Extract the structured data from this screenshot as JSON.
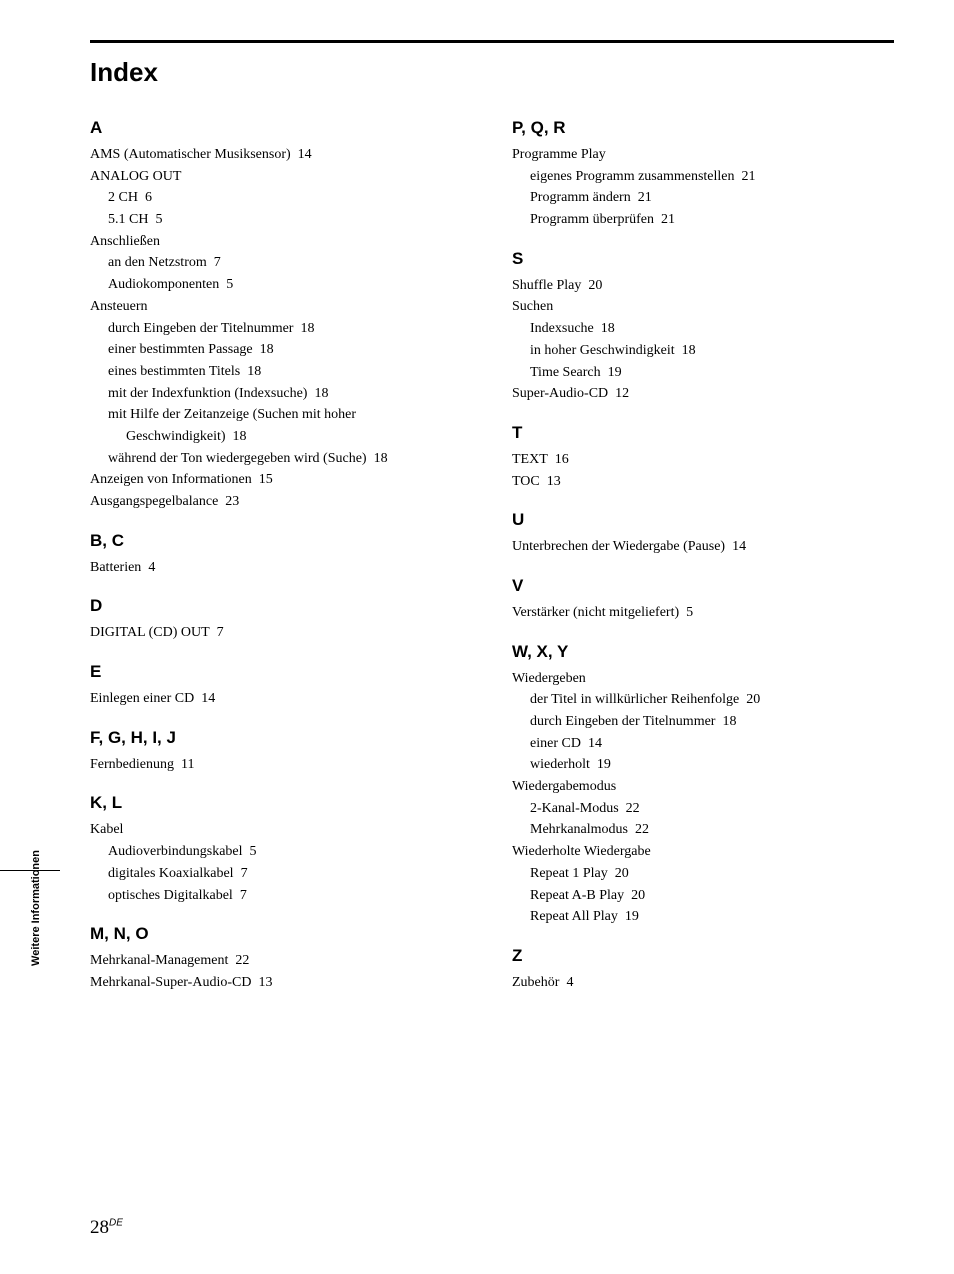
{
  "title": "Index",
  "sideTab": "Weitere Informationen",
  "pageNumber": "28",
  "pageNumberSuffix": "DE",
  "left": {
    "A": {
      "heading": "A",
      "items": [
        {
          "text": "AMS (Automatischer Musiksensor)",
          "page": "14"
        },
        {
          "text": "ANALOG OUT",
          "children": [
            {
              "text": "2 CH",
              "page": "6"
            },
            {
              "text": "5.1 CH",
              "page": "5"
            }
          ]
        },
        {
          "text": "Anschließen",
          "children": [
            {
              "text": "an den Netzstrom",
              "page": "7"
            },
            {
              "text": "Audiokomponenten",
              "page": "5"
            }
          ]
        },
        {
          "text": "Ansteuern",
          "children": [
            {
              "text": "durch Eingeben der Titelnummer",
              "page": "18"
            },
            {
              "text": "einer bestimmten Passage",
              "page": "18"
            },
            {
              "text": "eines bestimmten Titels",
              "page": "18"
            },
            {
              "text": "mit der Indexfunktion (Indexsuche)",
              "page": "18"
            },
            {
              "text": "mit Hilfe der Zeitanzeige (Suchen mit hoher Geschwindigkeit)",
              "page": "18",
              "wrap": true
            },
            {
              "text": "während der Ton wiedergegeben wird (Suche)",
              "page": "18"
            }
          ]
        },
        {
          "text": "Anzeigen von Informationen",
          "page": "15"
        },
        {
          "text": "Ausgangspegelbalance",
          "page": "23"
        }
      ]
    },
    "BC": {
      "heading": "B, C",
      "items": [
        {
          "text": "Batterien",
          "page": "4"
        }
      ]
    },
    "D": {
      "heading": "D",
      "items": [
        {
          "text": "DIGITAL (CD) OUT",
          "page": "7"
        }
      ]
    },
    "E": {
      "heading": "E",
      "items": [
        {
          "text": "Einlegen einer CD",
          "page": "14"
        }
      ]
    },
    "F": {
      "heading": "F, G, H, I, J",
      "items": [
        {
          "text": "Fernbedienung",
          "page": "11"
        }
      ]
    },
    "K": {
      "heading": "K, L",
      "items": [
        {
          "text": "Kabel",
          "children": [
            {
              "text": "Audioverbindungskabel",
              "page": "5"
            },
            {
              "text": "digitales Koaxialkabel",
              "page": "7"
            },
            {
              "text": "optisches Digitalkabel",
              "page": "7"
            }
          ]
        }
      ]
    },
    "M": {
      "heading": "M, N, O",
      "items": [
        {
          "text": "Mehrkanal-Management",
          "page": "22"
        },
        {
          "text": "Mehrkanal-Super-Audio-CD",
          "page": "13"
        }
      ]
    }
  },
  "right": {
    "P": {
      "heading": "P, Q, R",
      "items": [
        {
          "text": "Programme Play",
          "children": [
            {
              "text": "eigenes Programm zusammenstellen",
              "page": "21"
            },
            {
              "text": "Programm ändern",
              "page": "21"
            },
            {
              "text": "Programm überprüfen",
              "page": "21"
            }
          ]
        }
      ]
    },
    "S": {
      "heading": "S",
      "items": [
        {
          "text": "Shuffle Play",
          "page": "20"
        },
        {
          "text": "Suchen",
          "children": [
            {
              "text": "Indexsuche",
              "page": "18"
            },
            {
              "text": "in hoher Geschwindigkeit",
              "page": "18"
            },
            {
              "text": "Time Search",
              "page": "19"
            }
          ]
        },
        {
          "text": "Super-Audio-CD",
          "page": "12"
        }
      ]
    },
    "T": {
      "heading": "T",
      "items": [
        {
          "text": "TEXT",
          "page": "16"
        },
        {
          "text": "TOC",
          "page": "13"
        }
      ]
    },
    "U": {
      "heading": "U",
      "items": [
        {
          "text": "Unterbrechen der Wiedergabe (Pause)",
          "page": "14"
        }
      ]
    },
    "V": {
      "heading": "V",
      "items": [
        {
          "text": "Verstärker (nicht mitgeliefert)",
          "page": "5"
        }
      ]
    },
    "W": {
      "heading": "W, X, Y",
      "items": [
        {
          "text": "Wiedergeben",
          "children": [
            {
              "text": "der Titel in willkürlicher Reihenfolge",
              "page": "20"
            },
            {
              "text": "durch Eingeben der Titelnummer",
              "page": "18"
            },
            {
              "text": "einer CD",
              "page": "14"
            },
            {
              "text": "wiederholt",
              "page": "19"
            }
          ]
        },
        {
          "text": "Wiedergabemodus",
          "children": [
            {
              "text": "2-Kanal-Modus",
              "page": "22"
            },
            {
              "text": "Mehrkanalmodus",
              "page": "22"
            }
          ]
        },
        {
          "text": "Wiederholte Wiedergabe",
          "children": [
            {
              "text": "Repeat 1 Play",
              "page": "20"
            },
            {
              "text": "Repeat A-B Play",
              "page": "20"
            },
            {
              "text": "Repeat All Play",
              "page": "19"
            }
          ]
        }
      ]
    },
    "Z": {
      "heading": "Z",
      "items": [
        {
          "text": "Zubehör",
          "page": "4"
        }
      ]
    }
  }
}
